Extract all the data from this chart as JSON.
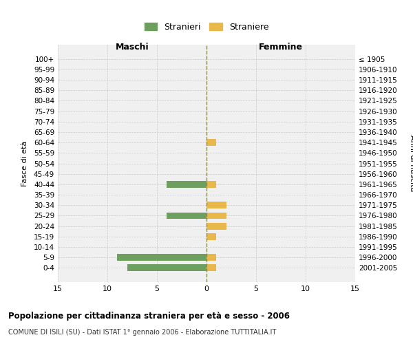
{
  "age_groups": [
    "100+",
    "95-99",
    "90-94",
    "85-89",
    "80-84",
    "75-79",
    "70-74",
    "65-69",
    "60-64",
    "55-59",
    "50-54",
    "45-49",
    "40-44",
    "35-39",
    "30-34",
    "25-29",
    "20-24",
    "15-19",
    "10-14",
    "5-9",
    "0-4"
  ],
  "birth_years": [
    "≤ 1905",
    "1906-1910",
    "1911-1915",
    "1916-1920",
    "1921-1925",
    "1926-1930",
    "1931-1935",
    "1936-1940",
    "1941-1945",
    "1946-1950",
    "1951-1955",
    "1956-1960",
    "1961-1965",
    "1966-1970",
    "1971-1975",
    "1976-1980",
    "1981-1985",
    "1986-1990",
    "1991-1995",
    "1996-2000",
    "2001-2005"
  ],
  "males": [
    0,
    0,
    0,
    0,
    0,
    0,
    0,
    0,
    0,
    0,
    0,
    0,
    4,
    0,
    0,
    4,
    0,
    0,
    0,
    9,
    8
  ],
  "females": [
    0,
    0,
    0,
    0,
    0,
    0,
    0,
    0,
    1,
    0,
    0,
    0,
    1,
    0,
    2,
    2,
    2,
    1,
    0,
    1,
    1
  ],
  "male_color": "#6d9f5e",
  "female_color": "#e8b84b",
  "center_line_color": "#8c8c4c",
  "grid_color": "#cccccc",
  "bg_color": "#ffffff",
  "plot_bg_color": "#f0f0f0",
  "title": "Popolazione per cittadinanza straniera per età e sesso - 2006",
  "subtitle": "COMUNE DI ISILI (SU) - Dati ISTAT 1° gennaio 2006 - Elaborazione TUTTITALIA.IT",
  "xlabel_left": "Maschi",
  "xlabel_right": "Femmine",
  "ylabel_left": "Fasce di età",
  "ylabel_right": "Anni di nascita",
  "legend_male": "Stranieri",
  "legend_female": "Straniere",
  "xlim": 15,
  "figsize": [
    6.0,
    5.0
  ],
  "dpi": 100
}
